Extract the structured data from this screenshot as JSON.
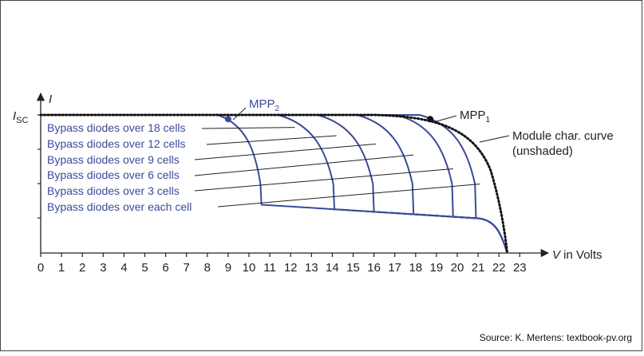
{
  "chart_data": {
    "type": "line",
    "xlabel_italic": "V",
    "xlabel_rest": " in Volts",
    "ylabel": "I",
    "isc_main": "I",
    "isc_sub": "SC",
    "xlim": [
      0,
      23.4
    ],
    "x_ticks": [
      0,
      1,
      2,
      3,
      4,
      5,
      6,
      7,
      8,
      9,
      10,
      11,
      12,
      13,
      14,
      15,
      16,
      17,
      18,
      19,
      20,
      21,
      22,
      23
    ],
    "series_names": [
      "Bypass diodes over 18 cells",
      "Bypass diodes over 12 cells",
      "Bypass diodes over 9 cells",
      "Bypass diodes over 6 cells",
      "Bypass diodes over 3 cells",
      "Bypass diodes over each cell"
    ],
    "shaded_curves": [
      {
        "series": "Bypass diodes over 18 cells",
        "knee_v": 10.6
      },
      {
        "series": "Bypass diodes over 12 cells",
        "knee_v": 14.1
      },
      {
        "series": "Bypass diodes over 9 cells",
        "knee_v": 16.0
      },
      {
        "series": "Bypass diodes over 6 cells",
        "knee_v": 17.9
      },
      {
        "series": "Bypass diodes over 3 cells",
        "knee_v": 19.8
      },
      {
        "series": "Bypass diodes over each cell",
        "knee_v": 20.9
      }
    ],
    "module_curve": {
      "label_line1": "Module char. curve",
      "label_line2": "(unshaded)",
      "voc": 22.4
    },
    "mpp1": {
      "main": "MPP",
      "sub": "1",
      "v": 18.7,
      "i": 0.97
    },
    "mpp2": {
      "main": "MPP",
      "sub": "2",
      "v": 9.0,
      "i": 0.97
    },
    "colors": {
      "shaded": "#3a4a9a",
      "module": "#111111",
      "axis": "#222222"
    }
  },
  "source": "Source: K. Mertens: textbook-pv.org"
}
